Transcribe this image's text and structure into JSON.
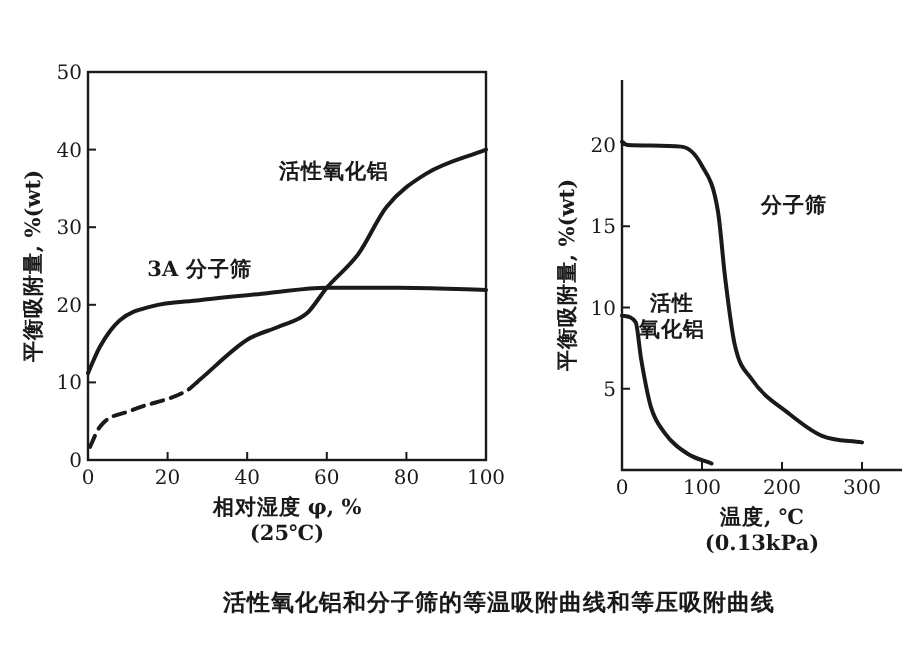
{
  "chart_data": [
    {
      "type": "line",
      "xlabel": "相对湿度 φ, %",
      "ylabel": "平衡吸附量, %(wt)",
      "xlim": [
        0,
        100
      ],
      "ylim": [
        0,
        50
      ],
      "xticks": [
        0,
        20,
        40,
        60,
        80,
        100
      ],
      "yticks": [
        0,
        10,
        20,
        30,
        40,
        50
      ],
      "grid": false,
      "marker": "none",
      "series": [
        {
          "name": "3A 分子筛",
          "color": "#1a1a1a",
          "line_style": "solid",
          "x": [
            0,
            3,
            8,
            16,
            28,
            45,
            60,
            78,
            100
          ],
          "values": [
            11.2,
            14.6,
            18,
            19.8,
            20.6,
            21.5,
            22.2,
            22.2,
            21.9
          ]
        },
        {
          "color": "#1a1a1a",
          "line_style": "dashed",
          "x": [
            0.5,
            3,
            11,
            25,
            28
          ],
          "values": [
            1.7,
            4.3,
            6.4,
            9,
            10.3
          ]
        },
        {
          "name": "活性氧化铝",
          "color": "#1a1a1a",
          "line_style": "solid",
          "x": [
            28,
            40,
            48,
            55,
            60,
            68,
            75,
            85,
            100
          ],
          "values": [
            10.3,
            15.5,
            17.2,
            18.9,
            22.2,
            26.6,
            32.6,
            36.9,
            40
          ]
        }
      ],
      "annotations": [
        "(25℃)"
      ]
    },
    {
      "type": "line",
      "xlabel": "温度, ℃",
      "ylabel": "平衡吸附量, %(wt)",
      "title": "活性氧化铝和分子筛的等温吸附曲线和等压吸附曲线",
      "xlim": [
        0,
        350
      ],
      "ylim": [
        0,
        24
      ],
      "xticks": [
        0,
        100,
        200,
        300
      ],
      "yticks": [
        5,
        10,
        15,
        20
      ],
      "grid": false,
      "marker": "none",
      "series": [
        {
          "name": "分子筛",
          "color": "#1a1a1a",
          "line_style": "solid",
          "x": [
            0,
            7,
            74,
            99,
            120,
            129,
            141,
            162,
            208,
            250,
            300
          ],
          "values": [
            20.2,
            20,
            19.9,
            18.8,
            15.9,
            11.8,
            7.7,
            5.6,
            3.5,
            2.1,
            1.7
          ]
        },
        {
          "name": "活性氧化铝",
          "color": "#1a1a1a",
          "line_style": "solid",
          "x": [
            0,
            17,
            24,
            36,
            53,
            82,
            112
          ],
          "values": [
            9.5,
            9.1,
            6.8,
            3.9,
            2.3,
            1,
            0.4
          ]
        }
      ],
      "annotations": [
        "(0.13kPa)"
      ]
    }
  ]
}
